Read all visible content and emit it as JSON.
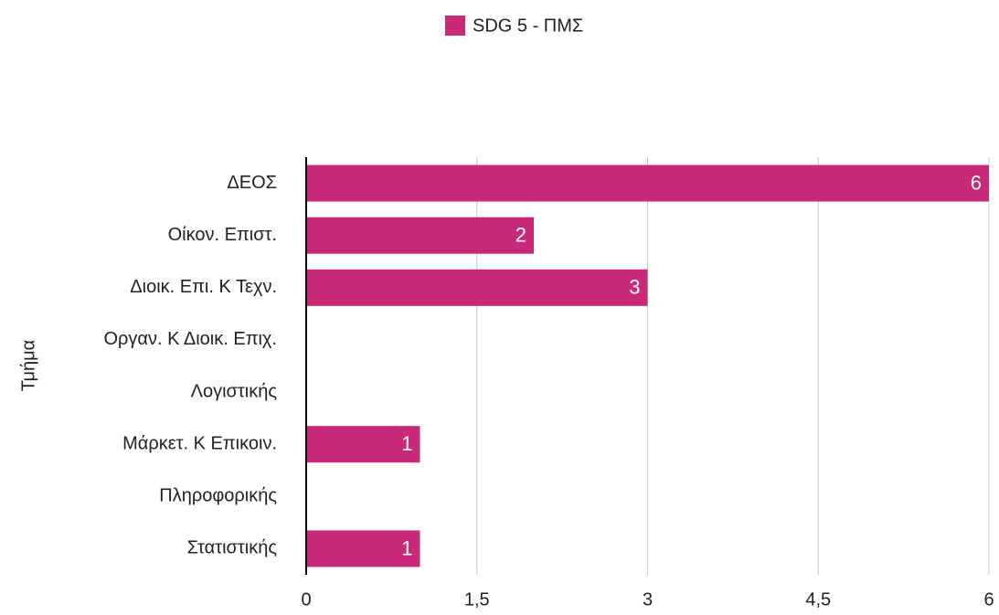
{
  "chart_data": {
    "type": "hbar",
    "categories": [
      "ΔΕΟΣ",
      "Οίκον. Επιστ.",
      "Διοικ. Επι. Κ Τεχν.",
      "Οργαν. Κ Διοικ. Επιχ.",
      "Λογιστικής",
      "Μάρκετ. Κ Επικοιν.",
      "Πληροφορικής",
      "Στατιστικής"
    ],
    "series": [
      {
        "name": "SDG 5 - ΠΜΣ",
        "color": "#c92a78",
        "values": [
          6,
          2,
          3,
          null,
          null,
          1,
          null,
          1
        ]
      }
    ],
    "ylabel": "Τμήμα",
    "xlim": [
      0,
      6
    ],
    "xticks": [
      0,
      {
        "value": 1.5,
        "label": "1,5"
      },
      3,
      {
        "value": 4.5,
        "label": "4,5"
      },
      6
    ],
    "grid": true,
    "legend": "top"
  }
}
